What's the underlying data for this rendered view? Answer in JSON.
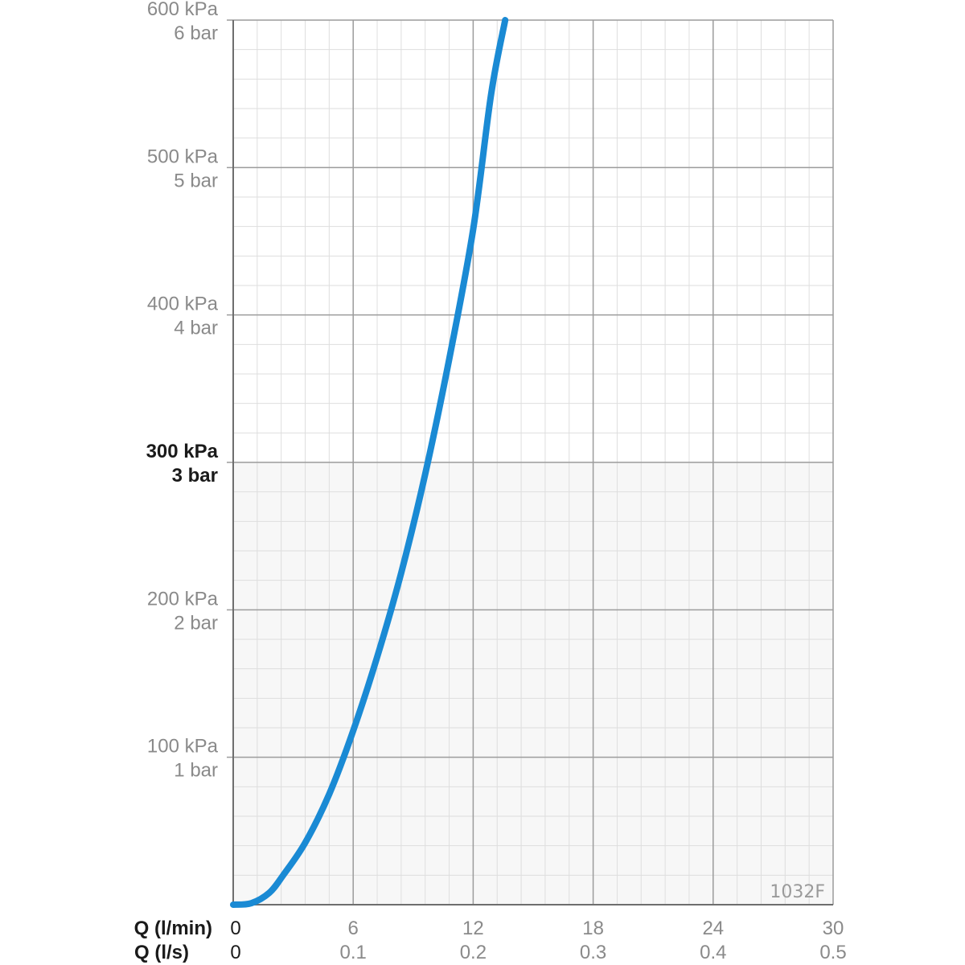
{
  "chart_data": {
    "type": "line",
    "code": "1032F",
    "x_primary": {
      "label": "Q (l/min)",
      "ticks": [
        "0",
        "6",
        "12",
        "18",
        "24",
        "30"
      ],
      "range": [
        0,
        30
      ]
    },
    "x_secondary": {
      "label": "Q (l/s)",
      "ticks": [
        "0",
        "0.1",
        "0.2",
        "0.3",
        "0.4",
        "0.5"
      ]
    },
    "y": {
      "range": [
        0,
        600
      ],
      "ticks": [
        {
          "value": 100,
          "kpa": "100 kPa",
          "bar": "1 bar",
          "bold": false
        },
        {
          "value": 200,
          "kpa": "200 kPa",
          "bar": "2 bar",
          "bold": false
        },
        {
          "value": 300,
          "kpa": "300 kPa",
          "bar": "3 bar",
          "bold": true
        },
        {
          "value": 400,
          "kpa": "400 kPa",
          "bar": "4 bar",
          "bold": false
        },
        {
          "value": 500,
          "kpa": "500 kPa",
          "bar": "5 bar",
          "bold": false
        },
        {
          "value": 600,
          "kpa": "600 kPa",
          "bar": "6 bar",
          "bold": false
        }
      ],
      "minor_step": 20
    },
    "x_minor_step": 1.2,
    "grid": true,
    "highlight_below": 300,
    "series": [
      {
        "color": "#1a8ad4",
        "points": [
          [
            0,
            0
          ],
          [
            0.9,
            1
          ],
          [
            1.8,
            8
          ],
          [
            2.5,
            20
          ],
          [
            3.6,
            42
          ],
          [
            4.8,
            75
          ],
          [
            6,
            118
          ],
          [
            7.2,
            168
          ],
          [
            8.4,
            225
          ],
          [
            9.6,
            292
          ],
          [
            10.8,
            370
          ],
          [
            12,
            458
          ],
          [
            12.9,
            550
          ],
          [
            13.6,
            600
          ]
        ]
      }
    ]
  }
}
